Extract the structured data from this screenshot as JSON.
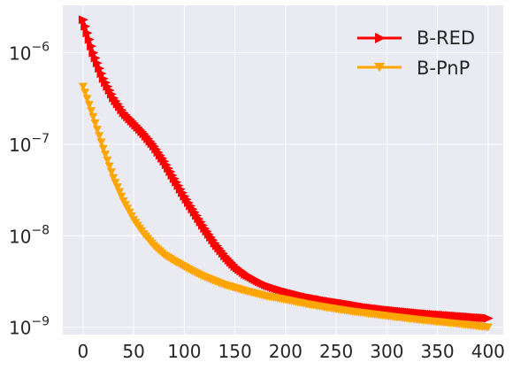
{
  "chart_data": {
    "type": "line",
    "title": "",
    "xlabel": "",
    "ylabel": "",
    "xlim": [
      -20,
      415
    ],
    "ylim": [
      8.3e-10,
      3.3e-06
    ],
    "yscale": "log",
    "grid": true,
    "legend_position": "top-right",
    "background_color": "#EAEAF2",
    "x_ticks": [
      0,
      50,
      100,
      150,
      200,
      250,
      300,
      350,
      400
    ],
    "x_tick_labels": [
      "0",
      "50",
      "100",
      "150",
      "200",
      "250",
      "300",
      "350",
      "400"
    ],
    "y_ticks": [
      1e-09,
      1e-08,
      1e-07,
      1e-06
    ],
    "y_tick_labels": [
      {
        "base": "10",
        "exp": "−9"
      },
      {
        "base": "10",
        "exp": "−8"
      },
      {
        "base": "10",
        "exp": "−7"
      },
      {
        "base": "10",
        "exp": "−6"
      }
    ],
    "series": [
      {
        "name": "B-RED",
        "color": "#FF0000",
        "marker": "triangle-right",
        "x": [
          0,
          10,
          20,
          30,
          40,
          50,
          60,
          70,
          80,
          90,
          100,
          110,
          120,
          130,
          140,
          150,
          160,
          170,
          180,
          190,
          200,
          220,
          240,
          260,
          280,
          300,
          320,
          340,
          360,
          380,
          400
        ],
        "y": [
          2.3e-06,
          1e-06,
          5.2e-07,
          3.2e-07,
          2.2e-07,
          1.7e-07,
          1.3e-07,
          9.5e-08,
          6.5e-08,
          4.2e-08,
          2.7e-08,
          1.8e-08,
          1.2e-08,
          8.3e-09,
          6e-09,
          4.6e-09,
          3.8e-09,
          3.3e-09,
          2.9e-09,
          2.65e-09,
          2.45e-09,
          2.15e-09,
          1.95e-09,
          1.8e-09,
          1.65e-09,
          1.55e-09,
          1.47e-09,
          1.4e-09,
          1.35e-09,
          1.3e-09,
          1.25e-09
        ]
      },
      {
        "name": "B-PnP",
        "color": "#FFA500",
        "marker": "triangle-down",
        "x": [
          0,
          10,
          20,
          30,
          40,
          50,
          60,
          70,
          80,
          90,
          100,
          110,
          120,
          130,
          140,
          150,
          160,
          170,
          180,
          190,
          200,
          220,
          240,
          260,
          280,
          300,
          320,
          340,
          360,
          380,
          400
        ],
        "y": [
          4.3e-07,
          2e-07,
          9e-08,
          4.3e-08,
          2.4e-08,
          1.5e-08,
          1.05e-08,
          7.8e-09,
          6.2e-09,
          5.3e-09,
          4.6e-09,
          4e-09,
          3.55e-09,
          3.2e-09,
          2.9e-09,
          2.7e-09,
          2.5e-09,
          2.35e-09,
          2.2e-09,
          2.1e-09,
          2e-09,
          1.8e-09,
          1.65e-09,
          1.52e-09,
          1.42e-09,
          1.33e-09,
          1.25e-09,
          1.18e-09,
          1.12e-09,
          1.06e-09,
          1e-09
        ]
      }
    ]
  }
}
